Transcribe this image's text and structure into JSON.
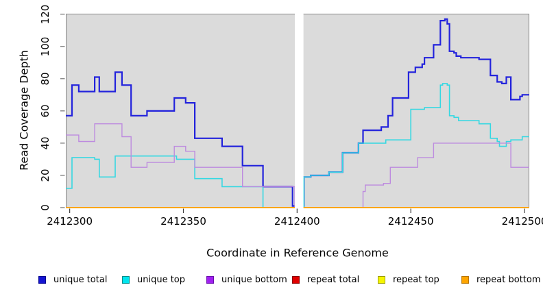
{
  "figure": {
    "ylabel": "Read Coverage Depth",
    "xlabel": "Coordinate in Reference Genome"
  },
  "chart_data": {
    "type": "line",
    "subtype": "step-coverage-plot",
    "title": "",
    "xlabel": "Coordinate in Reference Genome",
    "ylabel": "Read Coverage Depth",
    "xlim": [
      2412298.3,
      2412502.1
    ],
    "ylim": [
      0,
      120
    ],
    "grid": false,
    "panel_bg": "#DBDBDB",
    "panel_border": "#858585",
    "gap_region": {
      "from": 2412399,
      "to": 2412402.8,
      "color": "#FFFFFF"
    },
    "x_ticks": [
      {
        "v": 2412300,
        "label": "2412300"
      },
      {
        "v": 2412350,
        "label": "2412350"
      },
      {
        "v": 2412400,
        "label": "2412400"
      },
      {
        "v": 2412450,
        "label": "2412450"
      },
      {
        "v": 2412500,
        "label": "2412500"
      }
    ],
    "y_ticks": [
      {
        "v": 0,
        "label": "0"
      },
      {
        "v": 20,
        "label": "20"
      },
      {
        "v": 40,
        "label": "40"
      },
      {
        "v": 60,
        "label": "60"
      },
      {
        "v": 80,
        "label": "80"
      },
      {
        "v": 100,
        "label": "100"
      },
      {
        "v": 120,
        "label": "120"
      }
    ],
    "legend_position": "bottom",
    "series": [
      {
        "name": "unique total",
        "color": "#2323DC",
        "line_width": 2.2,
        "steps": [
          [
            2412298,
            57
          ],
          [
            2412301,
            76
          ],
          [
            2412304,
            72
          ],
          [
            2412311,
            81
          ],
          [
            2412313,
            72
          ],
          [
            2412320,
            84
          ],
          [
            2412323,
            76
          ],
          [
            2412327,
            57
          ],
          [
            2412334,
            60
          ],
          [
            2412346,
            68
          ],
          [
            2412351,
            65
          ],
          [
            2412355,
            43
          ],
          [
            2412367,
            38
          ],
          [
            2412376,
            26
          ],
          [
            2412385,
            13
          ],
          [
            2412398,
            1
          ],
          [
            2412403,
            19
          ],
          [
            2412406,
            20
          ],
          [
            2412414,
            22
          ],
          [
            2412420,
            34
          ],
          [
            2412427,
            40
          ],
          [
            2412429,
            48
          ],
          [
            2412437,
            50
          ],
          [
            2412440,
            57
          ],
          [
            2412442,
            68
          ],
          [
            2412449,
            84
          ],
          [
            2412452,
            87
          ],
          [
            2412455,
            89
          ],
          [
            2412456,
            93
          ],
          [
            2412460,
            101
          ],
          [
            2412463,
            116
          ],
          [
            2412465,
            117
          ],
          [
            2412466,
            114
          ],
          [
            2412467,
            97
          ],
          [
            2412469,
            96
          ],
          [
            2412470,
            94
          ],
          [
            2412472,
            93
          ],
          [
            2412480,
            92
          ],
          [
            2412485,
            82
          ],
          [
            2412488,
            78
          ],
          [
            2412490,
            77
          ],
          [
            2412492,
            81
          ],
          [
            2412494,
            67
          ],
          [
            2412498,
            69
          ],
          [
            2412499,
            70
          ]
        ]
      },
      {
        "name": "unique top",
        "color": "#35D8E2",
        "line_width": 1.6,
        "steps": [
          [
            2412298,
            12
          ],
          [
            2412301,
            31
          ],
          [
            2412311,
            30
          ],
          [
            2412313,
            19
          ],
          [
            2412320,
            32
          ],
          [
            2412347,
            30
          ],
          [
            2412355,
            18
          ],
          [
            2412367,
            13
          ],
          [
            2412385,
            0
          ],
          [
            2412403,
            19
          ],
          [
            2412406,
            20
          ],
          [
            2412414,
            22
          ],
          [
            2412420,
            34
          ],
          [
            2412427,
            40
          ],
          [
            2412439,
            42
          ],
          [
            2412450,
            61
          ],
          [
            2412456,
            62
          ],
          [
            2412463,
            76
          ],
          [
            2412464,
            77
          ],
          [
            2412466,
            76
          ],
          [
            2412467,
            57
          ],
          [
            2412469,
            56
          ],
          [
            2412471,
            54
          ],
          [
            2412480,
            52
          ],
          [
            2412485,
            43
          ],
          [
            2412488,
            41
          ],
          [
            2412489,
            38
          ],
          [
            2412492,
            41
          ],
          [
            2412494,
            42
          ],
          [
            2412499,
            44
          ]
        ]
      },
      {
        "name": "unique bottom",
        "color": "#BD8BDF",
        "line_width": 1.4,
        "steps": [
          [
            2412298,
            45
          ],
          [
            2412304,
            41
          ],
          [
            2412311,
            52
          ],
          [
            2412323,
            44
          ],
          [
            2412327,
            25
          ],
          [
            2412334,
            28
          ],
          [
            2412346,
            38
          ],
          [
            2412351,
            35
          ],
          [
            2412355,
            25
          ],
          [
            2412376,
            13
          ],
          [
            2412399,
            0
          ],
          [
            2412429,
            10
          ],
          [
            2412430,
            14
          ],
          [
            2412438,
            15
          ],
          [
            2412441,
            25
          ],
          [
            2412453,
            31
          ],
          [
            2412460,
            40
          ],
          [
            2412494,
            25
          ]
        ]
      },
      {
        "name": "repeat total",
        "color": "#DD2222",
        "line_width": 1.4,
        "steps": [
          [
            2412298,
            0
          ]
        ]
      },
      {
        "name": "repeat top",
        "color": "#E8E800",
        "line_width": 1.4,
        "steps": [
          [
            2412298,
            0
          ]
        ]
      },
      {
        "name": "repeat bottom",
        "color": "#FFA500",
        "line_width": 1.8,
        "steps": [
          [
            2412298,
            0
          ]
        ]
      }
    ],
    "legend": [
      {
        "label": "unique total",
        "fill": "#1414D2",
        "border": "#000090"
      },
      {
        "label": "unique top",
        "fill": "#00E5EE",
        "border": "#008B8B"
      },
      {
        "label": "unique bottom",
        "fill": "#A020F0",
        "border": "#6A0DAD"
      },
      {
        "label": "repeat total",
        "fill": "#E00000",
        "border": "#8B0000"
      },
      {
        "label": "repeat top",
        "fill": "#F5F500",
        "border": "#9B9B00"
      },
      {
        "label": "repeat bottom",
        "fill": "#FFA500",
        "border": "#B87400"
      }
    ],
    "legend_x_positions": [
      56,
      178,
      301,
      426,
      551,
      673
    ]
  }
}
